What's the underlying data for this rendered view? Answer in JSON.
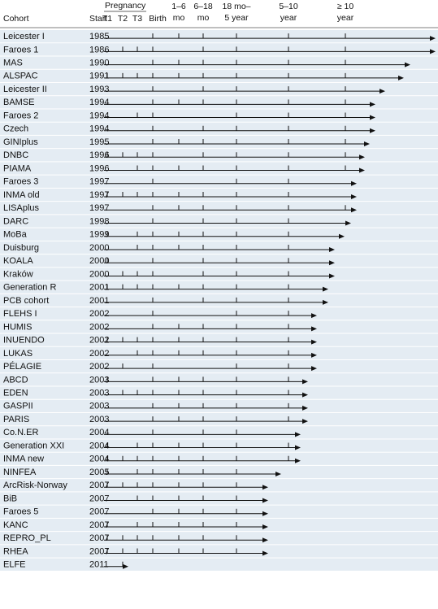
{
  "header": {
    "cohort": "Cohort",
    "start": "Start",
    "pregnancy": "Pregnancy",
    "columns": [
      [
        "T1"
      ],
      [
        "T2"
      ],
      [
        "T3"
      ],
      [
        "Birth"
      ],
      [
        "1–6",
        "mo"
      ],
      [
        "6–18",
        "mo"
      ],
      [
        "18 mo–",
        "5 year"
      ],
      [
        "5–10",
        "year"
      ],
      [
        "≥ 10",
        "year"
      ]
    ]
  },
  "rows": [
    {
      "cohort": "Leicester I",
      "start": "1985",
      "followups": [
        false,
        false,
        false,
        true,
        true,
        true,
        true,
        true,
        true
      ]
    },
    {
      "cohort": "Faroes 1",
      "start": "1986",
      "followups": [
        false,
        true,
        true,
        true,
        false,
        true,
        true,
        true,
        true
      ]
    },
    {
      "cohort": "MAS",
      "start": "1990",
      "followups": [
        false,
        false,
        false,
        true,
        true,
        true,
        true,
        true,
        true
      ]
    },
    {
      "cohort": "ALSPAC",
      "start": "1991",
      "followups": [
        true,
        true,
        true,
        true,
        true,
        true,
        true,
        true,
        true
      ]
    },
    {
      "cohort": "Leicester II",
      "start": "1993",
      "followups": [
        false,
        false,
        false,
        true,
        false,
        true,
        true,
        true,
        true
      ]
    },
    {
      "cohort": "BAMSE",
      "start": "1994",
      "followups": [
        false,
        false,
        false,
        true,
        true,
        true,
        true,
        true,
        true
      ]
    },
    {
      "cohort": "Faroes 2",
      "start": "1994",
      "followups": [
        false,
        false,
        true,
        true,
        false,
        false,
        true,
        true,
        true
      ]
    },
    {
      "cohort": "Czech",
      "start": "1994",
      "followups": [
        false,
        false,
        false,
        true,
        false,
        true,
        true,
        true,
        true
      ]
    },
    {
      "cohort": "GINIplus",
      "start": "1995",
      "followups": [
        false,
        false,
        false,
        true,
        true,
        true,
        true,
        true,
        true
      ]
    },
    {
      "cohort": "DNBC",
      "start": "1996",
      "followups": [
        true,
        true,
        true,
        true,
        false,
        true,
        true,
        true,
        true
      ]
    },
    {
      "cohort": "PIAMA",
      "start": "1996",
      "followups": [
        false,
        false,
        true,
        true,
        true,
        true,
        true,
        true,
        true
      ]
    },
    {
      "cohort": "Faroes 3",
      "start": "1997",
      "followups": [
        false,
        false,
        false,
        true,
        false,
        false,
        true,
        true,
        false
      ]
    },
    {
      "cohort": "INMA old",
      "start": "1997",
      "followups": [
        true,
        true,
        true,
        true,
        true,
        true,
        true,
        true,
        false
      ]
    },
    {
      "cohort": "LISAplus",
      "start": "1997",
      "followups": [
        false,
        false,
        false,
        true,
        true,
        true,
        true,
        true,
        true
      ]
    },
    {
      "cohort": "DARC",
      "start": "1998",
      "followups": [
        false,
        false,
        false,
        true,
        false,
        true,
        true,
        true,
        false
      ]
    },
    {
      "cohort": "MoBa",
      "start": "1999",
      "followups": [
        true,
        false,
        true,
        true,
        true,
        true,
        true,
        true,
        false
      ]
    },
    {
      "cohort": "Duisburg",
      "start": "2000",
      "followups": [
        false,
        false,
        true,
        true,
        true,
        true,
        true,
        true,
        false
      ]
    },
    {
      "cohort": "KOALA",
      "start": "2000",
      "followups": [
        true,
        false,
        false,
        true,
        false,
        true,
        true,
        true,
        false
      ]
    },
    {
      "cohort": "Kraków",
      "start": "2000",
      "followups": [
        false,
        true,
        true,
        true,
        false,
        true,
        true,
        true,
        false
      ]
    },
    {
      "cohort": "Generation R",
      "start": "2001",
      "followups": [
        true,
        true,
        true,
        true,
        true,
        true,
        true,
        true,
        false
      ]
    },
    {
      "cohort": "PCB cohort",
      "start": "2001",
      "followups": [
        false,
        false,
        false,
        true,
        false,
        true,
        true,
        true,
        false
      ]
    },
    {
      "cohort": "FLEHS I",
      "start": "2002",
      "followups": [
        false,
        false,
        false,
        true,
        false,
        false,
        true,
        true,
        false
      ]
    },
    {
      "cohort": "HUMIS",
      "start": "2002",
      "followups": [
        false,
        false,
        false,
        true,
        true,
        true,
        true,
        true,
        false
      ]
    },
    {
      "cohort": "INUENDO",
      "start": "2002",
      "followups": [
        true,
        true,
        true,
        true,
        true,
        true,
        true,
        true,
        false
      ]
    },
    {
      "cohort": "LUKAS",
      "start": "2002",
      "followups": [
        false,
        false,
        true,
        true,
        true,
        true,
        true,
        true,
        false
      ]
    },
    {
      "cohort": "PÉLAGIE",
      "start": "2002",
      "followups": [
        false,
        true,
        false,
        true,
        false,
        false,
        true,
        true,
        false
      ]
    },
    {
      "cohort": "ABCD",
      "start": "2003",
      "followups": [
        true,
        false,
        false,
        true,
        true,
        true,
        true,
        true,
        false
      ]
    },
    {
      "cohort": "EDEN",
      "start": "2003",
      "followups": [
        false,
        true,
        true,
        true,
        true,
        true,
        true,
        true,
        false
      ]
    },
    {
      "cohort": "GASPII",
      "start": "2003",
      "followups": [
        false,
        false,
        false,
        true,
        true,
        true,
        true,
        true,
        false
      ]
    },
    {
      "cohort": "PARIS",
      "start": "2003",
      "followups": [
        false,
        false,
        false,
        true,
        true,
        true,
        true,
        true,
        false
      ]
    },
    {
      "cohort": "Co.N.ER",
      "start": "2004",
      "followups": [
        false,
        false,
        false,
        true,
        false,
        true,
        true,
        false,
        false
      ]
    },
    {
      "cohort": "Generation XXI",
      "start": "2004",
      "followups": [
        true,
        false,
        true,
        true,
        true,
        true,
        true,
        true,
        false
      ]
    },
    {
      "cohort": "INMA new",
      "start": "2004",
      "followups": [
        true,
        true,
        true,
        true,
        true,
        true,
        true,
        true,
        false
      ]
    },
    {
      "cohort": "NINFEA",
      "start": "2005",
      "followups": [
        true,
        false,
        true,
        true,
        true,
        true,
        true,
        false,
        false
      ]
    },
    {
      "cohort": "ArcRisk-Norway",
      "start": "2007",
      "followups": [
        true,
        true,
        true,
        true,
        true,
        true,
        true,
        false,
        false
      ]
    },
    {
      "cohort": "BiB",
      "start": "2007",
      "followups": [
        false,
        false,
        true,
        true,
        true,
        true,
        true,
        false,
        false
      ]
    },
    {
      "cohort": "Faroes 5",
      "start": "2007",
      "followups": [
        false,
        false,
        false,
        true,
        true,
        true,
        true,
        false,
        false
      ]
    },
    {
      "cohort": "KANC",
      "start": "2007",
      "followups": [
        true,
        false,
        true,
        true,
        true,
        true,
        true,
        false,
        false
      ]
    },
    {
      "cohort": "REPRO_PL",
      "start": "2007",
      "followups": [
        true,
        true,
        true,
        true,
        true,
        true,
        true,
        false,
        false
      ]
    },
    {
      "cohort": "RHEA",
      "start": "2007",
      "followups": [
        true,
        true,
        true,
        true,
        true,
        true,
        true,
        false,
        false
      ]
    },
    {
      "cohort": "ELFE",
      "start": "2011",
      "followups": [
        false,
        true,
        false,
        false,
        false,
        false,
        false,
        false,
        false
      ]
    }
  ]
}
